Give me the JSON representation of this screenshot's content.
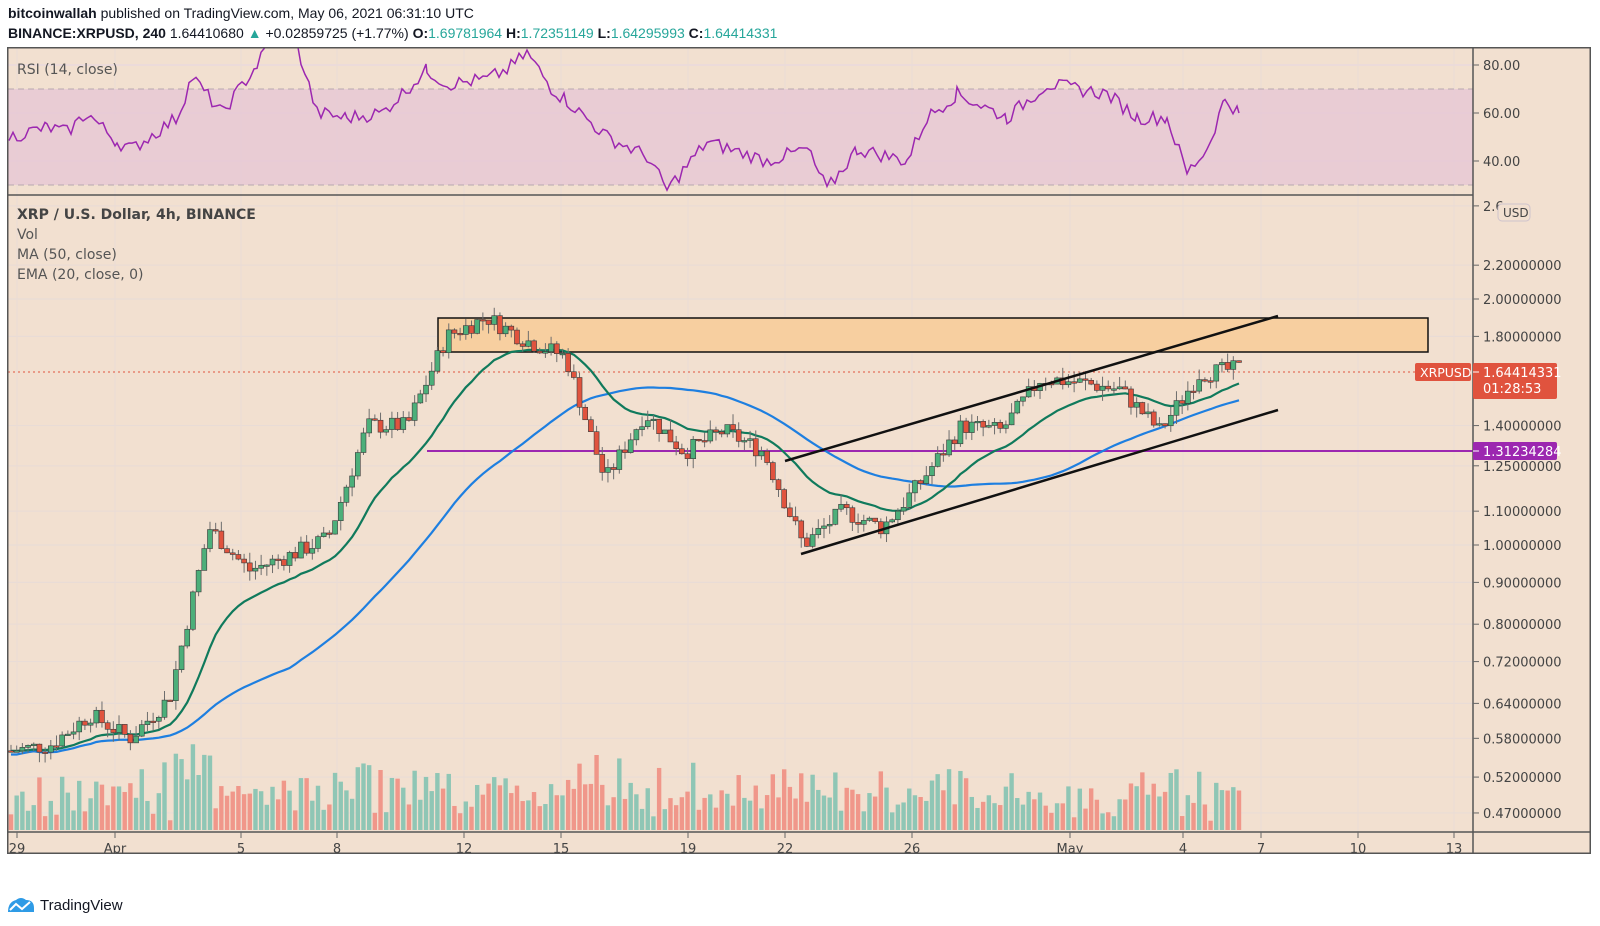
{
  "header": {
    "author": "bitcoinwallah",
    "published_text": "published on TradingView.com, May 06, 2021 06:31:10 UTC",
    "symbol_interval": "BINANCE:XRPUSD, 240",
    "last": "1.64410680",
    "change_arrow": "▲",
    "change": "+0.02859725 (+1.77%)",
    "ohlc": {
      "o_label": "O:",
      "o": "1.69781964",
      "h_label": "H:",
      "h": "1.72351149",
      "l_label": "L:",
      "l": "1.64295993",
      "c_label": "C:",
      "c": "1.64414331"
    }
  },
  "rsi_pane": {
    "title": "RSI (14, close)",
    "axis_labels": [
      "80.00",
      "60.00",
      "40.00"
    ]
  },
  "main_pane": {
    "legend": {
      "title": "XRP / U.S. Dollar, 4h, BINANCE",
      "vol": "Vol",
      "ma": "MA (50, close)",
      "ema": "EMA (20, close, 0)"
    },
    "currency_badge": "USD",
    "axis_labels": [
      "2.6",
      "2.20000000",
      "2.00000000",
      "1.80000000",
      "1.40000000",
      "1.25000000",
      "1.10000000",
      "1.00000000",
      "0.90000000",
      "0.80000000",
      "0.72000000",
      "0.64000000",
      "0.58000000",
      "0.52000000",
      "0.47000000"
    ],
    "price_tag": {
      "symbol": "XRPUSD",
      "price": "1.64414331",
      "countdown": "01:28:53",
      "color": "#e0533e"
    },
    "support_tag": {
      "price": "1.31234284",
      "color": "#9c27b0"
    }
  },
  "time_axis": [
    "29",
    "Apr",
    "5",
    "8",
    "12",
    "15",
    "19",
    "22",
    "26",
    "May",
    "4",
    "7",
    "10",
    "13"
  ],
  "footer": {
    "brand": "TradingView"
  },
  "colors": {
    "background": "#f2e0d0",
    "up": "#4caf7a",
    "down": "#e0533e",
    "ema20": "#107a5c",
    "ma50": "#1e7fe0",
    "rsi": "#9c27b0",
    "resistance_zone": "#f7cfa0",
    "support_line": "#9c27b0"
  },
  "chart_data": {
    "type": "candlestick",
    "title": "XRP / U.S. Dollar, 4h, BINANCE",
    "xlabel": "",
    "ylabel": "USD",
    "scale": "log",
    "ylim": [
      0.44,
      2.7
    ],
    "x_ticks": [
      "29",
      "Apr",
      "5",
      "8",
      "12",
      "15",
      "19",
      "22",
      "26",
      "May",
      "4",
      "7",
      "10",
      "13"
    ],
    "price_path_approx": [
      {
        "date": "Mar 29",
        "close": 0.56
      },
      {
        "date": "Apr 1",
        "close": 0.57
      },
      {
        "date": "Apr 3",
        "close": 0.62
      },
      {
        "date": "Apr 4",
        "close": 0.58
      },
      {
        "date": "Apr 5",
        "close": 0.65
      },
      {
        "date": "Apr 6",
        "close": 1.05
      },
      {
        "date": "Apr 7",
        "close": 0.93
      },
      {
        "date": "Apr 8",
        "close": 0.97
      },
      {
        "date": "Apr 9",
        "close": 1.02
      },
      {
        "date": "Apr 10",
        "close": 1.4
      },
      {
        "date": "Apr 12",
        "close": 1.4
      },
      {
        "date": "Apr 13",
        "close": 1.8
      },
      {
        "date": "Apr 14",
        "close": 1.9
      },
      {
        "date": "Apr 15",
        "close": 1.78
      },
      {
        "date": "Apr 16",
        "close": 1.7
      },
      {
        "date": "Apr 18",
        "close": 1.2
      },
      {
        "date": "Apr 19",
        "close": 1.45
      },
      {
        "date": "Apr 20",
        "close": 1.3
      },
      {
        "date": "Apr 21",
        "close": 1.38
      },
      {
        "date": "Apr 22",
        "close": 1.3
      },
      {
        "date": "Apr 23",
        "close": 1.0
      },
      {
        "date": "Apr 24",
        "close": 1.1
      },
      {
        "date": "Apr 25",
        "close": 1.05
      },
      {
        "date": "Apr 26",
        "close": 1.2
      },
      {
        "date": "Apr 27",
        "close": 1.4
      },
      {
        "date": "Apr 29",
        "close": 1.38
      },
      {
        "date": "Apr 30",
        "close": 1.6
      },
      {
        "date": "May 1",
        "close": 1.58
      },
      {
        "date": "May 3",
        "close": 1.55
      },
      {
        "date": "May 4",
        "close": 1.38
      },
      {
        "date": "May 5",
        "close": 1.62
      },
      {
        "date": "May 6",
        "close": 1.644
      }
    ],
    "series": [
      {
        "name": "EMA (20, close, 0)",
        "color": "#107a5c"
      },
      {
        "name": "MA (50, close)",
        "color": "#1e7fe0"
      },
      {
        "name": "Vol",
        "color": "up #8fc6b5 / down #f0978a"
      }
    ],
    "annotations": [
      {
        "type": "rectangle",
        "label": "resistance zone",
        "price_range": [
          1.75,
          1.92
        ],
        "from": "Apr 11",
        "to": "May 12"
      },
      {
        "type": "horizontal_line",
        "label": "support",
        "price": 1.31234284
      },
      {
        "type": "trendline",
        "label": "channel upper",
        "from": [
          "Apr 22",
          1.28
        ],
        "to": [
          "May 7",
          1.93
        ]
      },
      {
        "type": "trendline",
        "label": "channel lower",
        "from": [
          "Apr 22",
          0.98
        ],
        "to": [
          "May 7",
          1.46
        ]
      }
    ],
    "last_price": 1.64414331,
    "rsi": {
      "name": "RSI (14, close)",
      "ylim": [
        22,
        88
      ],
      "bands": [
        30,
        70
      ],
      "ticks": [
        80,
        60,
        40
      ],
      "latest": 60
    }
  }
}
